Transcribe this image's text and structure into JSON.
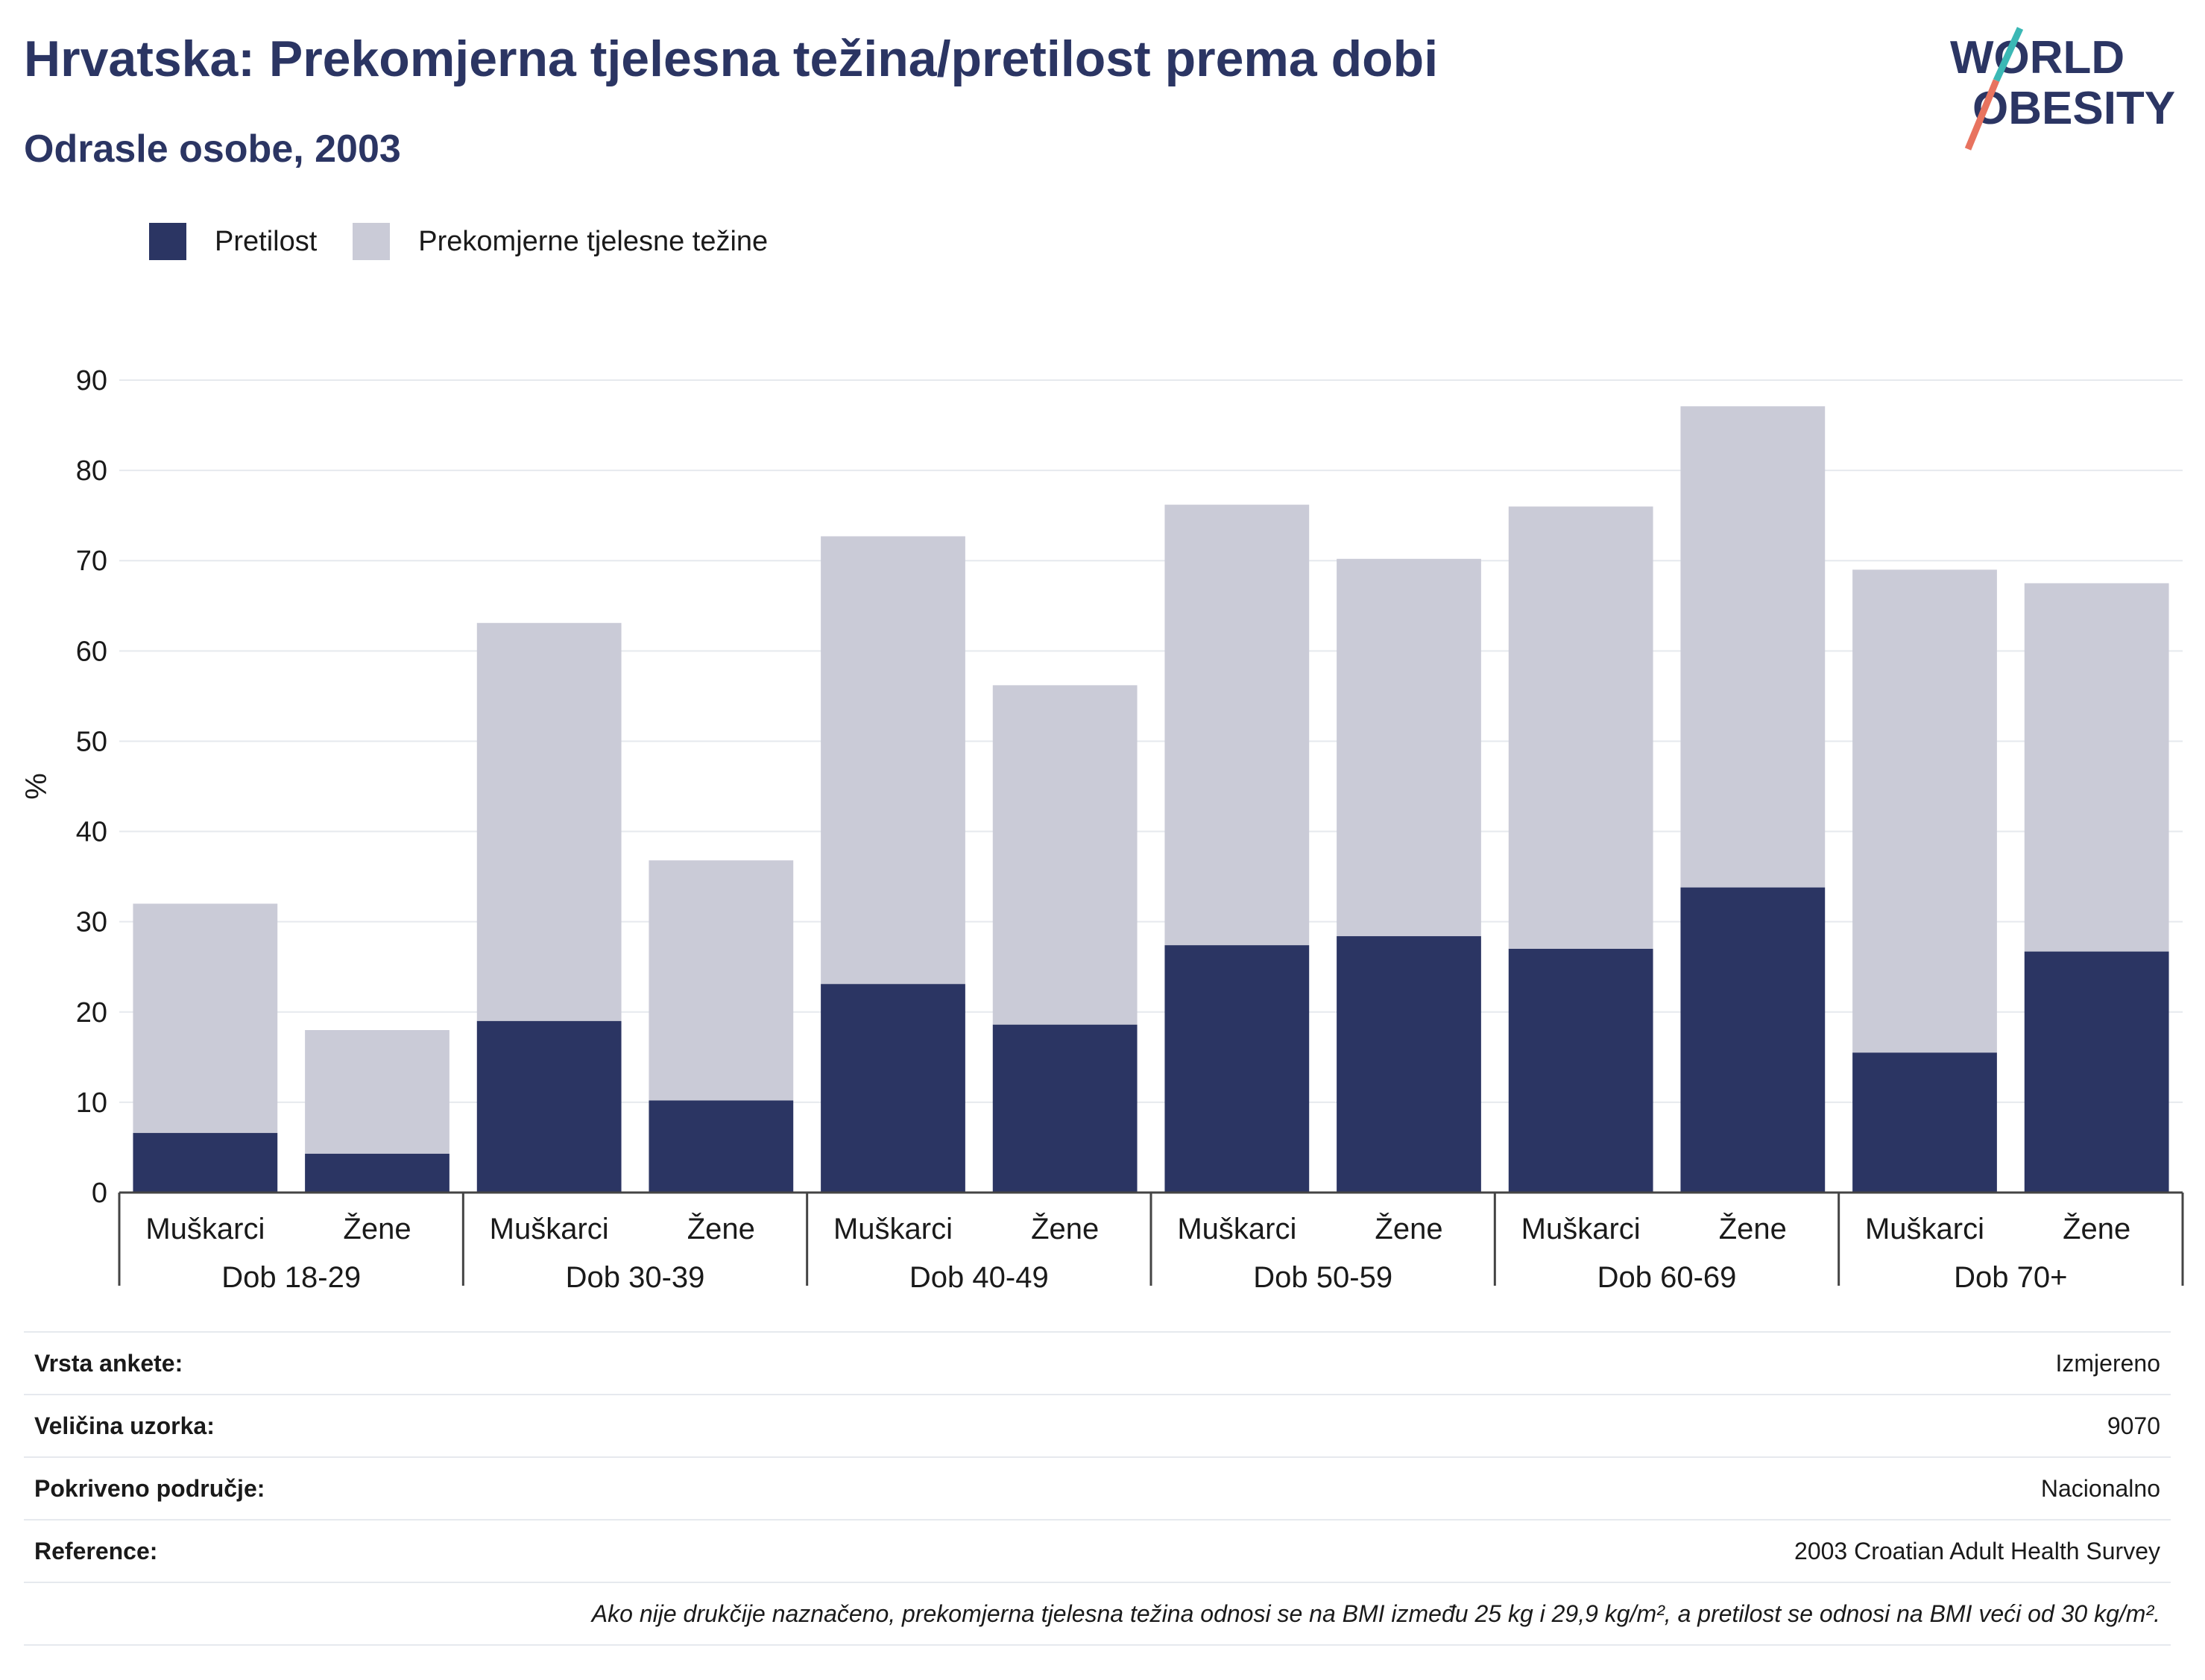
{
  "title": "Hrvatska: Prekomjerna tjelesna težina/pretilost prema dobi",
  "subtitle": "Odrasle osobe, 2003",
  "logo": {
    "line1": "WORLD",
    "line2": "OBESITY"
  },
  "colors": {
    "obesity": "#2b3563",
    "overweight": "#cacbd7",
    "text": "#2b3563",
    "grid": "#e6e9ee",
    "logo_teal": "#3bb8b5",
    "logo_coral": "#e8735f"
  },
  "chart_data": {
    "type": "bar",
    "stacked": true,
    "ylabel": "%",
    "ylim": [
      0,
      90
    ],
    "yticks": [
      0,
      10,
      20,
      30,
      40,
      50,
      60,
      70,
      80,
      90
    ],
    "grid": true,
    "legend_position": "top-left",
    "groups": [
      "Dob 18-29",
      "Dob 30-39",
      "Dob 40-49",
      "Dob 50-59",
      "Dob 60-69",
      "Dob 70+"
    ],
    "subcategories": [
      "Muškarci",
      "Žene"
    ],
    "series": [
      {
        "name": "Pretilost",
        "values": [
          6.6,
          4.3,
          19.0,
          10.2,
          23.1,
          18.6,
          27.4,
          28.4,
          27.0,
          33.8,
          15.5,
          26.7
        ]
      },
      {
        "name": "Prekomjerne tjelesne težine",
        "values": [
          25.4,
          13.7,
          44.1,
          26.6,
          49.6,
          37.6,
          48.8,
          41.8,
          49.0,
          53.3,
          53.5,
          40.8
        ]
      }
    ]
  },
  "info": [
    {
      "key": "Vrsta ankete:",
      "value": "Izmjereno"
    },
    {
      "key": "Veličina uzorka:",
      "value": "9070"
    },
    {
      "key": "Pokriveno područje:",
      "value": "Nacionalno"
    },
    {
      "key": "Reference:",
      "value": "2003 Croatian Adult Health Survey"
    }
  ],
  "note": "Ako nije drukčije naznačeno, prekomjerna tjelesna težina odnosi se na BMI između 25 kg i 29,9 kg/m², a pretilost se odnosi na BMI veći od 30 kg/m²."
}
